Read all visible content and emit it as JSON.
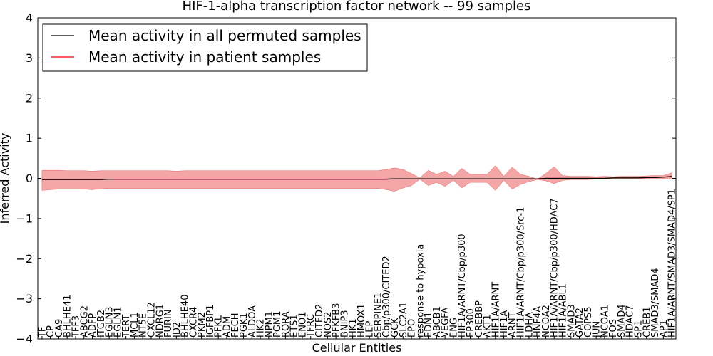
{
  "chart_data": {
    "type": "line",
    "title": "HIF-1-alpha transcription factor network -- 99 samples",
    "xlabel": "Cellular Entities",
    "ylabel": "Inferred Activity",
    "ylim": [
      -4,
      4
    ],
    "yticks": [
      4,
      3,
      2,
      1,
      0,
      -1,
      -2,
      -3,
      -4
    ],
    "ytick_labels": [
      "4",
      "3",
      "2",
      "1",
      "0",
      "−1",
      "−2",
      "−3",
      "−4"
    ],
    "legend_position": "top-left",
    "colors": {
      "permuted": "#000000",
      "patient": "#ff0000",
      "band": "#f08080"
    },
    "categories": [
      "TF",
      "CP",
      "CA9",
      "BHLHE41",
      "TFF3",
      "ABCG2",
      "ADFP",
      "ITGB2",
      "EGLN3",
      "EGLN1",
      "TERT",
      "MCL1",
      "NT5E",
      "CXCL12",
      "NDRG1",
      "FURIN",
      "ID2",
      "BHLHE40",
      "CXCR4",
      "PKM2",
      "IGFBP1",
      "PFKL",
      "ADM",
      "FECH",
      "PGK1",
      "ALDOA",
      "HK2",
      "NPM1",
      "PGM1",
      "RORA",
      "ETS1",
      "ENO1",
      "TFRC",
      "CITED2",
      "NOS2",
      "PFKFB3",
      "BNIP3",
      "HK1",
      "HMOX1",
      "LEP",
      "SERPINE1",
      "Cbp/p300/CITED2",
      "GCK",
      "SLC2A1",
      "EPO",
      "response to hypoxia",
      "EDN1",
      "ABCB1",
      "VEGFA",
      "ENG",
      "HIF1A/ARNT/Cbp/p300",
      "EP300",
      "CREBBP",
      "AKT1",
      "HIF1A/ARNT",
      "HIF1A",
      "ARNT",
      "HIF1A/ARNT/Cbp/p300/Src-1",
      "LDHA",
      "HNF4A",
      "NCOA2",
      "HIF1A/ARNT/Cbp/p300/HDAC7",
      "HIF1A/ABL1",
      "SMAD3",
      "GATA2",
      "COPS5",
      "JUN",
      "NCOA1",
      "FOS",
      "SMAD4",
      "HDAC7",
      "SP1",
      "CREB1",
      "SMAD3/SMAD4",
      "AP1",
      "HIF1A/ARNT/SMAD3/SMAD4/SP1"
    ],
    "series": [
      {
        "name": "Mean activity in all permuted samples",
        "values": [
          -0.03,
          -0.03,
          -0.03,
          -0.03,
          -0.03,
          -0.03,
          -0.03,
          -0.03,
          -0.02,
          -0.02,
          -0.02,
          -0.02,
          -0.02,
          -0.02,
          -0.02,
          -0.02,
          -0.02,
          -0.02,
          -0.02,
          -0.02,
          -0.02,
          -0.02,
          -0.02,
          -0.02,
          -0.02,
          -0.02,
          -0.02,
          -0.02,
          -0.02,
          -0.02,
          -0.02,
          -0.02,
          -0.02,
          -0.02,
          -0.02,
          -0.02,
          -0.02,
          -0.02,
          -0.02,
          -0.02,
          -0.02,
          -0.02,
          -0.01,
          -0.01,
          -0.01,
          -0.01,
          -0.01,
          -0.01,
          -0.01,
          -0.01,
          -0.01,
          -0.01,
          -0.01,
          -0.01,
          -0.01,
          -0.01,
          -0.01,
          -0.01,
          -0.01,
          -0.01,
          0.0,
          0.0,
          0.0,
          0.0,
          0.0,
          0.0,
          0.0,
          0.0,
          0.01,
          0.01,
          0.01,
          0.01,
          0.02,
          0.02,
          0.03,
          0.05
        ]
      },
      {
        "name": "Mean activity in patient samples",
        "values": [
          -0.03,
          -0.03,
          -0.03,
          -0.03,
          -0.03,
          -0.03,
          -0.03,
          -0.03,
          -0.02,
          -0.02,
          -0.02,
          -0.02,
          -0.02,
          -0.02,
          -0.02,
          -0.02,
          -0.02,
          -0.02,
          -0.02,
          -0.02,
          -0.02,
          -0.02,
          -0.02,
          -0.02,
          -0.02,
          -0.02,
          -0.02,
          -0.02,
          -0.02,
          -0.02,
          -0.02,
          -0.02,
          -0.02,
          -0.02,
          -0.02,
          -0.02,
          -0.02,
          -0.02,
          -0.02,
          -0.02,
          -0.02,
          -0.02,
          -0.01,
          -0.01,
          -0.01,
          -0.01,
          -0.01,
          -0.01,
          -0.01,
          -0.01,
          -0.01,
          -0.01,
          -0.01,
          -0.01,
          -0.01,
          -0.01,
          -0.01,
          -0.01,
          -0.01,
          -0.01,
          0.0,
          0.0,
          0.0,
          0.0,
          0.0,
          0.0,
          0.0,
          0.0,
          0.01,
          0.01,
          0.01,
          0.01,
          0.02,
          0.02,
          0.03,
          0.05
        ]
      }
    ],
    "band_upper": [
      0.2,
      0.2,
      0.2,
      0.19,
      0.19,
      0.19,
      0.18,
      0.19,
      0.19,
      0.19,
      0.19,
      0.19,
      0.19,
      0.19,
      0.19,
      0.19,
      0.18,
      0.19,
      0.19,
      0.19,
      0.19,
      0.19,
      0.19,
      0.19,
      0.19,
      0.19,
      0.19,
      0.19,
      0.19,
      0.19,
      0.19,
      0.19,
      0.19,
      0.19,
      0.19,
      0.19,
      0.19,
      0.19,
      0.19,
      0.19,
      0.19,
      0.22,
      0.26,
      0.22,
      0.12,
      0.01,
      0.2,
      0.1,
      0.18,
      0.05,
      0.25,
      0.1,
      0.1,
      0.1,
      0.32,
      0.05,
      0.28,
      0.1,
      0.05,
      -0.02,
      0.12,
      0.29,
      0.07,
      0.05,
      0.05,
      0.05,
      0.04,
      0.05,
      0.04,
      0.05,
      0.05,
      0.05,
      0.06,
      0.07,
      0.07,
      0.14
    ],
    "band_lower": [
      -0.3,
      -0.28,
      -0.27,
      -0.27,
      -0.27,
      -0.27,
      -0.28,
      -0.26,
      -0.25,
      -0.25,
      -0.25,
      -0.25,
      -0.25,
      -0.25,
      -0.25,
      -0.25,
      -0.25,
      -0.25,
      -0.25,
      -0.25,
      -0.25,
      -0.25,
      -0.25,
      -0.25,
      -0.25,
      -0.25,
      -0.25,
      -0.25,
      -0.25,
      -0.25,
      -0.25,
      -0.25,
      -0.25,
      -0.25,
      -0.25,
      -0.25,
      -0.25,
      -0.25,
      -0.25,
      -0.25,
      -0.25,
      -0.28,
      -0.32,
      -0.24,
      -0.18,
      -0.02,
      -0.18,
      -0.1,
      -0.2,
      -0.05,
      -0.24,
      -0.1,
      -0.1,
      -0.1,
      -0.3,
      -0.05,
      -0.27,
      -0.15,
      -0.08,
      -0.03,
      -0.06,
      -0.13,
      -0.05,
      -0.03,
      -0.03,
      -0.03,
      -0.02,
      -0.02,
      -0.02,
      -0.02,
      -0.02,
      -0.02,
      -0.01,
      -0.01,
      -0.01,
      -0.01
    ]
  }
}
